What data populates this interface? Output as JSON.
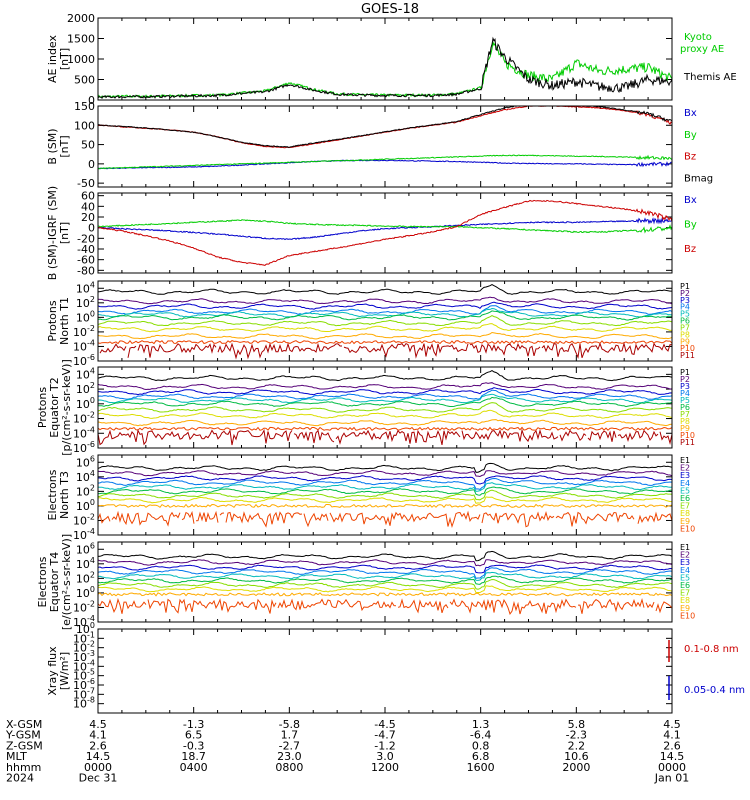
{
  "title": "GOES-18",
  "colors": {
    "black": "#000000",
    "green": "#00cc00",
    "blue": "#0000cc",
    "red": "#cc0000",
    "fluxPalette": [
      "#000000",
      "#550077",
      "#0000cc",
      "#0077ee",
      "#00bbbb",
      "#00bb44",
      "#88dd00",
      "#dddd00",
      "#ffaa00",
      "#ee4400",
      "#aa0000"
    ]
  },
  "chart_data": [
    {
      "id": "ae",
      "type": "line",
      "ylabel": [
        "AE index",
        "[nT]"
      ],
      "scale": "linear",
      "ylim": [
        0,
        2000
      ],
      "ticks": [
        "0",
        "500",
        "1000",
        "1500",
        "2000"
      ],
      "x": [
        0,
        1,
        2,
        3,
        4,
        5,
        6,
        7,
        8,
        9,
        10,
        11,
        12,
        13,
        14,
        15,
        16,
        16.5,
        17,
        18,
        19,
        20,
        21,
        22,
        23,
        24
      ],
      "series": [
        {
          "name": "Kyoto proxy AE",
          "color": "#00cc00",
          "legend": [
            "Kyoto",
            "proxy AE"
          ],
          "values": [
            80,
            90,
            90,
            100,
            110,
            120,
            170,
            220,
            420,
            260,
            150,
            130,
            120,
            120,
            120,
            150,
            300,
            1400,
            900,
            600,
            500,
            900,
            700,
            750,
            800,
            500
          ]
        },
        {
          "name": "Themis AE",
          "color": "#000000",
          "legend": [
            "Themis AE"
          ],
          "values": [
            70,
            80,
            80,
            90,
            100,
            110,
            160,
            200,
            380,
            240,
            140,
            120,
            110,
            110,
            110,
            140,
            280,
            1450,
            1050,
            500,
            350,
            450,
            320,
            300,
            500,
            450
          ]
        }
      ]
    },
    {
      "id": "bsm",
      "type": "line",
      "ylabel": [
        "B (SM)",
        "[nT]"
      ],
      "scale": "linear",
      "ylim": [
        -60,
        150
      ],
      "ticks": [
        "-50",
        "0",
        "50",
        "100",
        "150"
      ],
      "x": [
        0,
        1,
        2,
        3,
        4,
        5,
        6,
        7,
        8,
        9,
        10,
        11,
        12,
        13,
        14,
        15,
        16,
        17,
        18,
        19,
        20,
        21,
        22,
        23,
        24
      ],
      "series": [
        {
          "name": "Bx",
          "color": "#0000cc",
          "values": [
            -12,
            -11,
            -10,
            -9,
            -8,
            -6,
            -3,
            0,
            3,
            6,
            8,
            9,
            9,
            8,
            7,
            6,
            4,
            2,
            1,
            0,
            0,
            -1,
            -2,
            -1,
            0
          ]
        },
        {
          "name": "By",
          "color": "#00cc00",
          "values": [
            -12,
            -10,
            -8,
            -6,
            -4,
            -2,
            0,
            2,
            4,
            6,
            8,
            10,
            12,
            14,
            16,
            18,
            20,
            22,
            22,
            21,
            20,
            19,
            18,
            16,
            14
          ]
        },
        {
          "name": "Bz",
          "color": "#cc0000",
          "values": [
            100,
            96,
            92,
            88,
            82,
            70,
            55,
            45,
            42,
            52,
            62,
            72,
            82,
            92,
            100,
            108,
            125,
            140,
            150,
            150,
            148,
            145,
            138,
            128,
            105
          ]
        },
        {
          "name": "Bmag",
          "color": "#000000",
          "values": [
            101,
            97,
            93,
            88,
            82,
            70,
            56,
            47,
            44,
            54,
            63,
            73,
            83,
            93,
            101,
            110,
            128,
            145,
            155,
            155,
            152,
            148,
            140,
            130,
            110
          ]
        }
      ]
    },
    {
      "id": "bigrf",
      "type": "line",
      "ylabel": [
        "B (SM)-IGRF (SM)",
        "[nT]"
      ],
      "scale": "linear",
      "ylim": [
        -85,
        65
      ],
      "ticks": [
        "-80",
        "-60",
        "-40",
        "-20",
        "0",
        "20",
        "40",
        "60"
      ],
      "x": [
        0,
        1,
        2,
        3,
        4,
        5,
        6,
        7,
        8,
        9,
        10,
        11,
        12,
        13,
        14,
        15,
        16,
        17,
        18,
        19,
        20,
        21,
        22,
        23,
        24
      ],
      "series": [
        {
          "name": "Bx",
          "color": "#0000cc",
          "values": [
            0,
            -2,
            -4,
            -6,
            -9,
            -12,
            -16,
            -20,
            -22,
            -18,
            -12,
            -6,
            -2,
            0,
            2,
            4,
            6,
            8,
            10,
            10,
            10,
            11,
            12,
            13,
            14
          ]
        },
        {
          "name": "By",
          "color": "#00cc00",
          "values": [
            2,
            4,
            6,
            8,
            10,
            12,
            14,
            12,
            8,
            6,
            5,
            4,
            3,
            2,
            2,
            2,
            0,
            -2,
            -4,
            -6,
            -8,
            -8,
            -6,
            -4,
            0
          ]
        },
        {
          "name": "Bz",
          "color": "#cc0000",
          "values": [
            0,
            -6,
            -15,
            -25,
            -38,
            -55,
            -65,
            -70,
            -52,
            -45,
            -38,
            -30,
            -22,
            -15,
            -8,
            2,
            25,
            38,
            50,
            50,
            45,
            40,
            35,
            28,
            15
          ]
        }
      ]
    },
    {
      "id": "p1",
      "type": "line",
      "ylabel": [
        "Protons",
        "North T1"
      ],
      "scale": "log",
      "ylim": [
        1e-06,
        100000.0
      ],
      "ticks": [
        "10^-6",
        "10^-4",
        "10^-2",
        "10^0",
        "10^2",
        "10^4"
      ],
      "series_names": [
        "P1",
        "P2",
        "P3",
        "P4",
        "P5",
        "P6",
        "P7",
        "P8",
        "P9",
        "P10",
        "P11"
      ],
      "levels": [
        3.5,
        2.2,
        1.5,
        0.8,
        0.4,
        0.0,
        -0.8,
        -1.6,
        -2.6,
        -3.4,
        -4.2
      ]
    },
    {
      "id": "p2",
      "type": "line",
      "ylabel": [
        "Protons",
        "Equator T2",
        "[p/(cm²-s-sr-keV)]"
      ],
      "scale": "log",
      "ylim": [
        1e-06,
        100000.0
      ],
      "ticks": [
        "10^-6",
        "10^-4",
        "10^-2",
        "10^0",
        "10^2",
        "10^4"
      ],
      "series_names": [
        "P1",
        "P2",
        "P3",
        "P4",
        "P5",
        "P6",
        "P7",
        "P8",
        "P9",
        "P10",
        "P11"
      ],
      "levels": [
        3.5,
        2.3,
        1.6,
        1.0,
        0.5,
        0.0,
        -0.8,
        -1.6,
        -2.6,
        -3.4,
        -4.2
      ]
    },
    {
      "id": "e1",
      "type": "line",
      "ylabel": [
        "Electrons",
        "North T3"
      ],
      "scale": "log",
      "ylim": [
        0.0001,
        10000000.0
      ],
      "ticks": [
        "10^-4",
        "10^-2",
        "10^0",
        "10^2",
        "10^4",
        "10^6"
      ],
      "series_names": [
        "E1",
        "E2",
        "E3",
        "E4",
        "E5",
        "E6",
        "E7",
        "E8",
        "E9",
        "E10"
      ],
      "levels": [
        5.2,
        4.5,
        3.8,
        3.2,
        2.6,
        2.0,
        1.4,
        0.8,
        0.0,
        -1.5
      ]
    },
    {
      "id": "e2",
      "type": "line",
      "ylabel": [
        "Electrons",
        "Equator T4",
        "[e/(cm²-s-sr-keV)]"
      ],
      "scale": "log",
      "ylim": [
        0.0001,
        10000000.0
      ],
      "ticks": [
        "10^-4",
        "10^-2",
        "10^0",
        "10^2",
        "10^4",
        "10^6"
      ],
      "series_names": [
        "E1",
        "E2",
        "E3",
        "E4",
        "E5",
        "E6",
        "E7",
        "E8",
        "E9",
        "E10"
      ],
      "levels": [
        5.0,
        4.2,
        3.5,
        2.9,
        2.3,
        1.7,
        1.1,
        0.5,
        -0.2,
        -1.5
      ]
    },
    {
      "id": "xray",
      "type": "line",
      "ylabel": [
        "Xray flux",
        "[W/m²]"
      ],
      "scale": "log",
      "ylim": [
        1e-09,
        1
      ],
      "ticks": [
        "10^-8",
        "10^-7",
        "10^-6",
        "10^-5",
        "10^-4",
        "10^-3",
        "10^-2",
        "10^-1",
        "10^0"
      ],
      "series": [
        {
          "name": "0.1-0.8 nm",
          "color": "#cc0000"
        },
        {
          "name": "0.05-0.4 nm",
          "color": "#0000cc"
        }
      ]
    }
  ],
  "ephemeris": {
    "rows": [
      {
        "label": "X-GSM",
        "values": [
          "4.5",
          "-1.3",
          "-5.8",
          "-4.5",
          "1.3",
          "5.8",
          "4.5"
        ]
      },
      {
        "label": "Y-GSM",
        "values": [
          "4.1",
          "6.5",
          "1.7",
          "-4.7",
          "-6.4",
          "-2.3",
          "4.1"
        ]
      },
      {
        "label": "Z-GSM",
        "values": [
          "2.6",
          "-0.3",
          "-2.7",
          "-1.2",
          "0.8",
          "2.2",
          "2.6"
        ]
      },
      {
        "label": "MLT",
        "values": [
          "14.5",
          "18.7",
          "23.0",
          "3.0",
          "6.8",
          "10.6",
          "14.5"
        ]
      },
      {
        "label": "hhmm",
        "values": [
          "0000",
          "0400",
          "0800",
          "1200",
          "1600",
          "2000",
          "0000"
        ]
      },
      {
        "label": "2024",
        "values": [
          "Dec 31",
          "",
          "",
          "",
          "",
          "",
          "Jan 01"
        ]
      }
    ]
  }
}
